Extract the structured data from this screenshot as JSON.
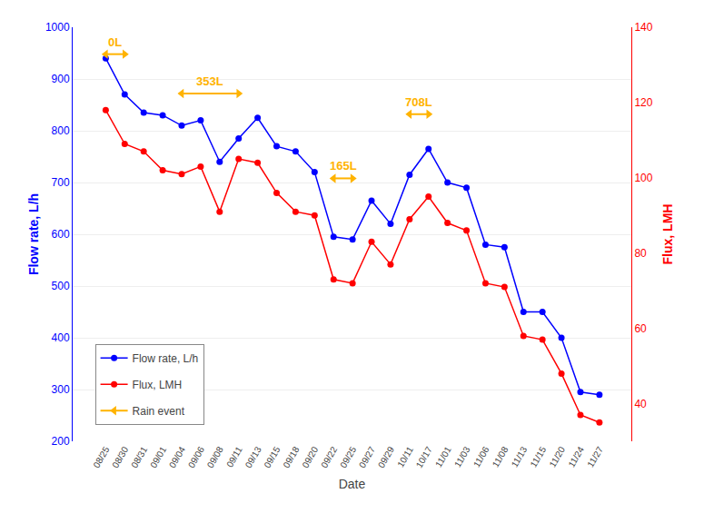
{
  "chart_data": {
    "type": "line",
    "x_label": "Date",
    "y_label": "Flow rate, L/h",
    "y2_label": "Flux, LMH",
    "categories": [
      "08/25",
      "08/30",
      "08/31",
      "09/01",
      "09/04",
      "09/06",
      "09/08",
      "09/11",
      "09/13",
      "09/15",
      "09/18",
      "09/20",
      "09/22",
      "09/25",
      "09/27",
      "09/29",
      "10/11",
      "10/17",
      "11/01",
      "11/03",
      "11/06",
      "11/08",
      "11/13",
      "11/15",
      "11/20",
      "11/24",
      "11/27"
    ],
    "series": [
      {
        "name": "Flow rate, L/h",
        "color": "#0000FF",
        "axis": "y",
        "values": [
          940,
          870,
          835,
          830,
          810,
          820,
          740,
          785,
          825,
          770,
          760,
          720,
          595,
          590,
          665,
          620,
          715,
          765,
          700,
          690,
          580,
          575,
          450,
          450,
          400,
          295,
          290
        ]
      },
      {
        "name": "Flux, LMH",
        "color": "#FF0000",
        "axis": "y2",
        "values": [
          118,
          109,
          107,
          102,
          101,
          103,
          91,
          105,
          104,
          96,
          91,
          90,
          73,
          72,
          83,
          77,
          89,
          95,
          88,
          86,
          72,
          71,
          58,
          57,
          48,
          37,
          35
        ]
      },
      {
        "name": "Rain event",
        "type": "arrow",
        "color": "#FFB300",
        "axis": "y",
        "events": [
          {
            "label": "0L",
            "x_start": "08/25",
            "x_end": "08/30",
            "y": 948
          },
          {
            "label": "353L",
            "x_start": "09/04",
            "x_end": "09/11",
            "y": 872
          },
          {
            "label": "165L",
            "x_start": "09/22",
            "x_end": "09/25",
            "y": 708
          },
          {
            "label": "708L",
            "x_start": "10/11",
            "x_end": "10/17",
            "y": 832
          }
        ]
      }
    ],
    "ylim": [
      200,
      1000
    ],
    "yticks": [
      200,
      300,
      400,
      500,
      600,
      700,
      800,
      900,
      1000
    ],
    "y2lim": [
      30,
      140
    ],
    "y2ticks": [
      40,
      60,
      80,
      100,
      120,
      140
    ],
    "grid": true,
    "legend": "lower left"
  }
}
